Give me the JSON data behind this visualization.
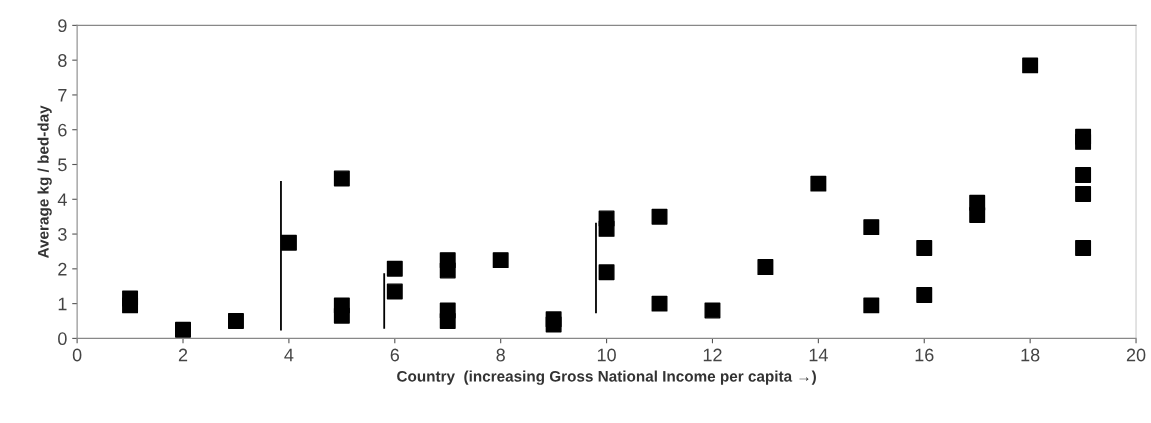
{
  "chart_data": {
    "type": "scatter",
    "xlabel": "Country  (increasing Gross National Income per capita →)",
    "ylabel": "Average kg / bed-day",
    "xlim": [
      0,
      20
    ],
    "xticks": [
      0,
      2,
      4,
      6,
      8,
      10,
      12,
      14,
      16,
      18,
      20
    ],
    "ylim": [
      0,
      9
    ],
    "yticks": [
      0,
      1,
      2,
      3,
      4,
      5,
      6,
      7,
      8,
      9
    ],
    "grid": false,
    "legend": false,
    "marker": "square",
    "series": [
      {
        "color": "#000000",
        "x": [
          1,
          1,
          2,
          3,
          4,
          5,
          5,
          5,
          6,
          6,
          7,
          7,
          7,
          7,
          8,
          9,
          9,
          10,
          10,
          10,
          11,
          11,
          12,
          13,
          14,
          15,
          15,
          16,
          16,
          17,
          17,
          18,
          19,
          19,
          19,
          19,
          19
        ],
        "values": [
          1.15,
          0.95,
          0.25,
          0.5,
          2.75,
          4.6,
          0.95,
          0.65,
          2.0,
          1.35,
          2.25,
          1.95,
          0.8,
          0.5,
          2.25,
          0.55,
          0.4,
          3.45,
          3.15,
          1.9,
          3.5,
          1.0,
          0.8,
          2.05,
          4.45,
          3.2,
          0.95,
          2.6,
          1.25,
          3.9,
          3.55,
          7.85,
          5.8,
          5.65,
          4.7,
          4.15,
          2.6
        ]
      },
      {
        "type": "line",
        "color": "#000000",
        "marker": "none",
        "x": [
          3.85,
          3.85
        ],
        "values": [
          0.25,
          4.5
        ]
      },
      {
        "type": "line",
        "color": "#000000",
        "marker": "none",
        "x": [
          5.8,
          5.8
        ],
        "values": [
          0.3,
          1.85
        ]
      },
      {
        "type": "line",
        "color": "#000000",
        "marker": "none",
        "x": [
          9.8,
          9.8
        ],
        "values": [
          0.75,
          3.3
        ]
      }
    ]
  }
}
